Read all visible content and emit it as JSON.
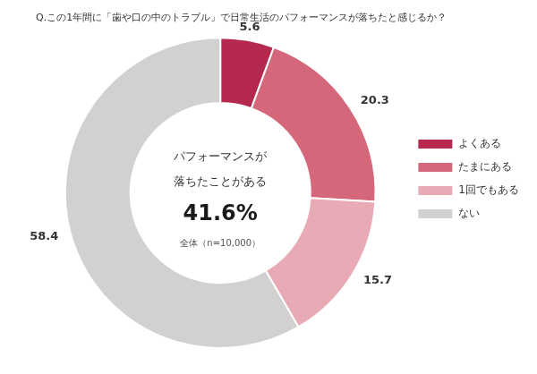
{
  "chart_data": {
    "type": "doughnut",
    "title": "Q.この1年間に「歯や口の中のトラブル」で日常生活のパフォーマンスが落ちたと感じるか？",
    "categories": [
      "よくある",
      "たまにある",
      "1回でもある",
      "ない"
    ],
    "values": [
      5.6,
      20.3,
      15.7,
      58.4
    ],
    "colors": [
      "#b5294e",
      "#d4687a",
      "#e8aab5",
      "#d3d0d0"
    ],
    "data_labels": true,
    "legend": "right",
    "annotations": [
      "パフォーマンスが",
      "落ちたことがある",
      "41.6%",
      "全体（n=10,000）"
    ]
  }
}
